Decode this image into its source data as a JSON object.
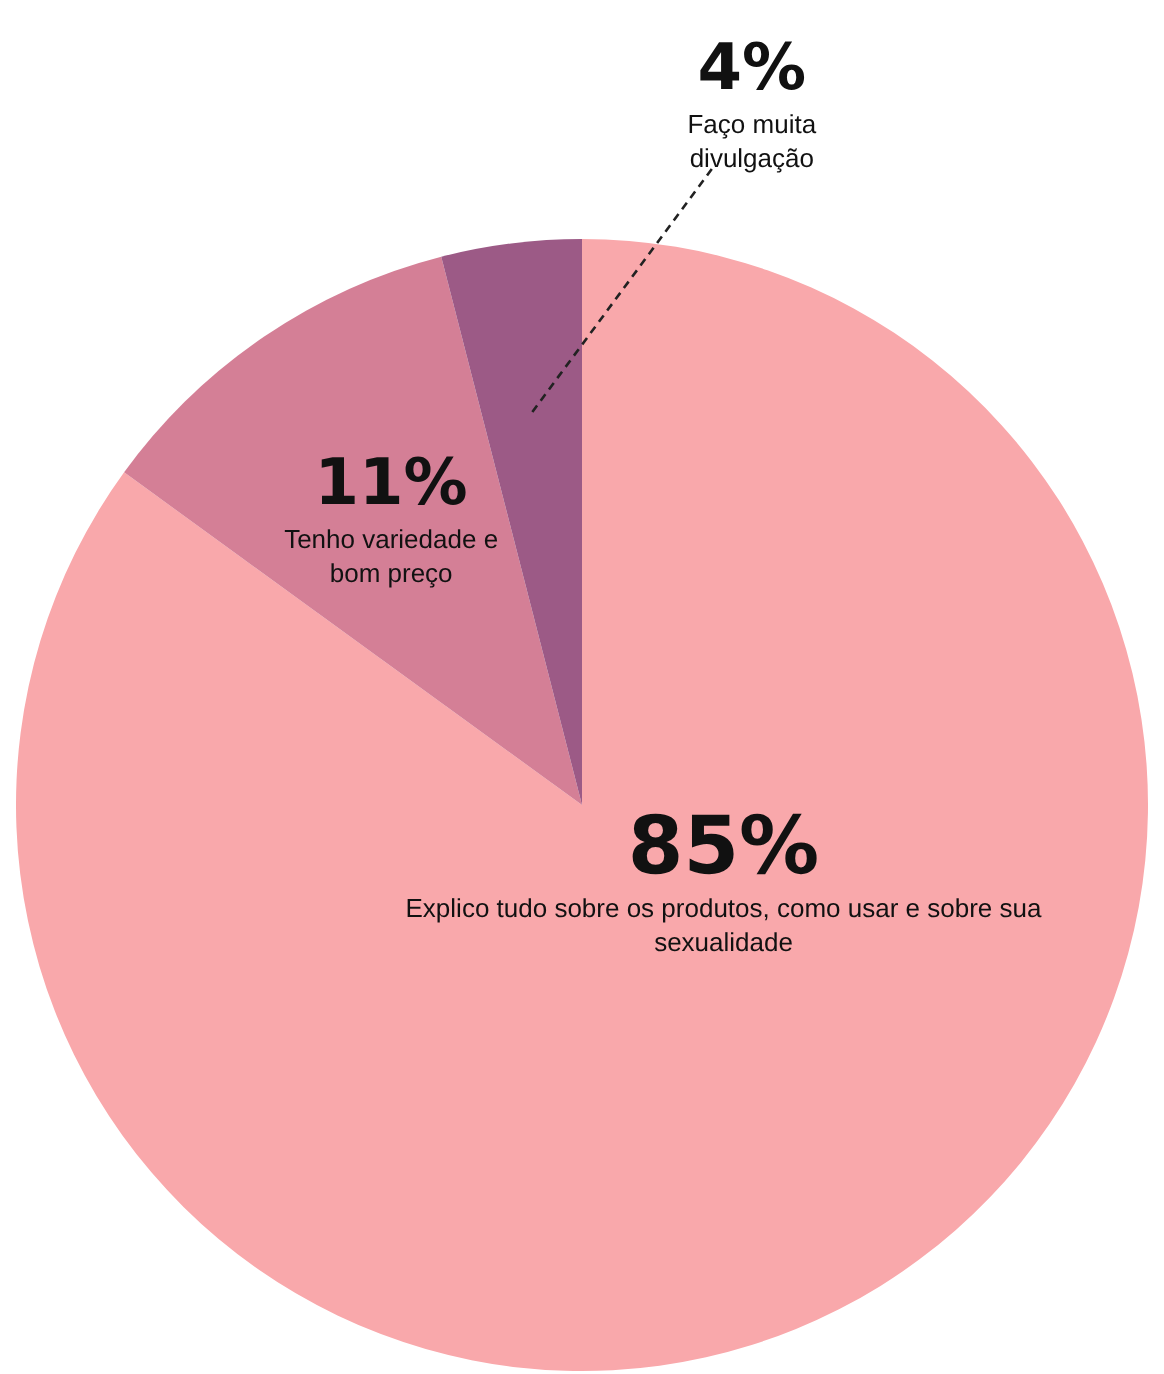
{
  "chart_data": {
    "type": "pie",
    "categories": [
      "Explico tudo sobre os produtos, como usar e sobre sua sexualidade",
      "Tenho variedade e bom preço",
      "Faço muita divulgação"
    ],
    "values": [
      85,
      11,
      4
    ],
    "colors": [
      "#f9a8ab",
      "#d47f96",
      "#9c5a86"
    ],
    "value_labels": [
      "85%",
      "11%",
      "4%"
    ],
    "legend": false
  }
}
